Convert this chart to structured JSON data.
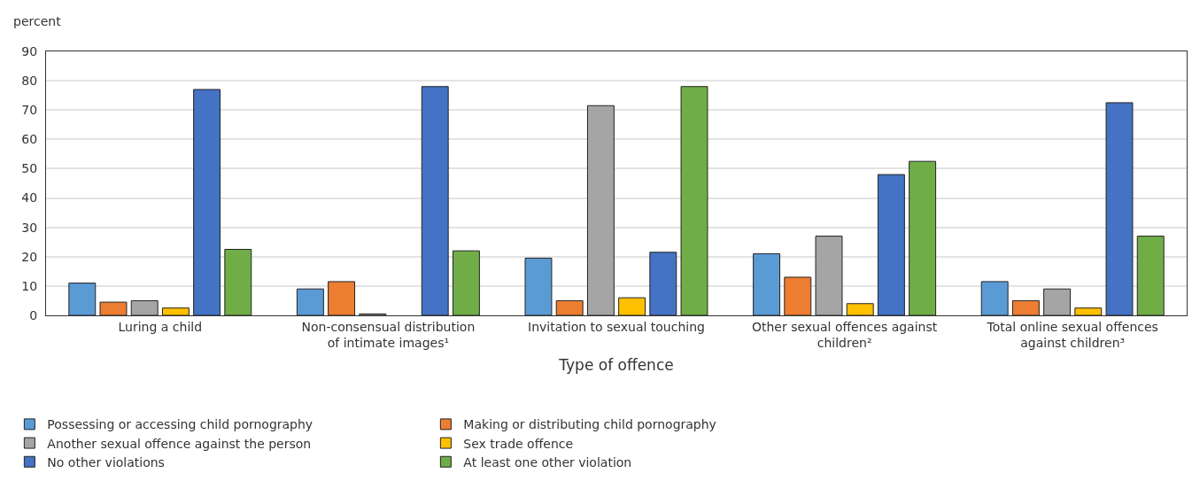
{
  "chart_data": {
    "type": "bar",
    "ylabel": "percent",
    "xlabel": "Type of offence",
    "categories": [
      "Luring a child",
      "Non-consensual distribution of intimate images¹",
      "Invitation to sexual touching",
      "Other sexual offences against children²",
      "Total online sexual offences against children³"
    ],
    "series": [
      {
        "name": "Possessing or accessing child pornography",
        "color": "#5b9bd5",
        "values": [
          11,
          9,
          19.5,
          21,
          11.5
        ]
      },
      {
        "name": "Making or distributing child pornography",
        "color": "#ed7d31",
        "values": [
          4.5,
          11.5,
          5,
          13,
          5
        ]
      },
      {
        "name": "Another sexual offence against the person",
        "color": "#a5a5a5",
        "values": [
          5,
          0.5,
          71.5,
          27,
          9
        ]
      },
      {
        "name": "Sex trade offence",
        "color": "#ffc000",
        "values": [
          2.5,
          null,
          6,
          4,
          2.5
        ]
      },
      {
        "name": "No other violations",
        "color": "#4472c4",
        "values": [
          77,
          78,
          21.5,
          48,
          72.5
        ]
      },
      {
        "name": "At least one other violation",
        "color": "#70ad47",
        "values": [
          22.5,
          22,
          78,
          52.5,
          27
        ]
      }
    ],
    "ylim": [
      0,
      90
    ],
    "yticks": [
      0,
      10,
      20,
      30,
      40,
      50,
      60,
      70,
      80,
      90
    ],
    "grid": "y",
    "legend": "bottom"
  }
}
